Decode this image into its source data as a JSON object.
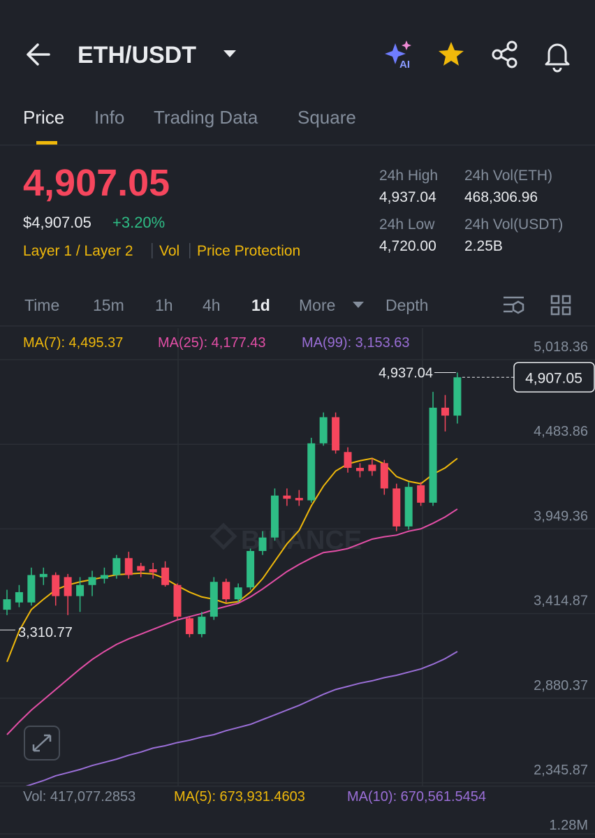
{
  "header": {
    "title": "ETH/USDT",
    "ai_label": "AI"
  },
  "tabs": [
    "Price",
    "Info",
    "Trading Data",
    "Square"
  ],
  "ticker": {
    "price": "4,907.05",
    "usd_price": "$4,907.05",
    "change": "+3.20%",
    "tags": [
      "Layer 1 / Layer 2",
      "Vol",
      "Price Protection"
    ],
    "stats": [
      {
        "label": "24h High",
        "value": "4,937.04"
      },
      {
        "label": "24h Vol(ETH)",
        "value": "468,306.96"
      },
      {
        "label": "24h Low",
        "value": "4,720.00"
      },
      {
        "label": "24h Vol(USDT)",
        "value": "2.25B"
      }
    ]
  },
  "timeframes": [
    "Time",
    "15m",
    "1h",
    "4h",
    "1d",
    "More",
    "Depth"
  ],
  "chart_data": {
    "type": "candlestick",
    "watermark": "BINANCE",
    "categories": [
      null,
      null,
      null,
      null,
      null,
      null,
      null,
      null,
      null,
      null,
      null,
      null,
      null,
      null,
      null,
      null,
      null,
      null,
      null,
      null,
      null,
      null,
      null,
      null,
      null,
      null,
      null,
      null,
      null,
      null,
      null,
      null,
      null,
      null,
      null,
      null,
      null,
      null
    ],
    "open": [
      3439,
      3485,
      3485,
      3645,
      3658,
      3645,
      3525,
      3595,
      3635,
      3658,
      3765,
      3715,
      3695,
      3705,
      3595,
      3385,
      3285,
      3395,
      3615,
      3505,
      3580,
      3810,
      3895,
      4160,
      4145,
      4130,
      4490,
      4655,
      4435,
      4335,
      4355,
      4365,
      4205,
      3965,
      4225,
      4115,
      4715,
      4665
    ],
    "high": [
      3565,
      3595,
      3705,
      3705,
      3675,
      3665,
      3645,
      3685,
      3705,
      3785,
      3805,
      3735,
      3735,
      3745,
      3605,
      3395,
      3425,
      3645,
      3635,
      3605,
      3825,
      3935,
      4205,
      4205,
      4195,
      4525,
      4685,
      4685,
      4465,
      4365,
      4395,
      4385,
      4235,
      4245,
      4245,
      4815,
      4795,
      4937.04
    ],
    "low": [
      3405,
      3455,
      3465,
      3595,
      3465,
      3405,
      3425,
      3525,
      3605,
      3635,
      3635,
      3645,
      3635,
      3585,
      3375,
      3265,
      3265,
      3375,
      3485,
      3485,
      3565,
      3785,
      3875,
      4095,
      4095,
      4115,
      4475,
      4425,
      4305,
      4275,
      4285,
      4165,
      3935,
      3945,
      4095,
      4095,
      4565,
      4615
    ],
    "close": [
      3505,
      3550,
      3658,
      3665,
      3525,
      3525,
      3595,
      3645,
      3658,
      3765,
      3658,
      3685,
      3675,
      3595,
      3395,
      3285,
      3395,
      3615,
      3505,
      3580,
      3810,
      3895,
      4160,
      4140,
      4130,
      4490,
      4655,
      4445,
      4335,
      4315,
      4315,
      4205,
      3965,
      4215,
      4115,
      4715,
      4665,
      4907.05
    ],
    "up_color": "#2ebd85",
    "down_color": "#f6465d",
    "series": [
      {
        "name": "MA(7): 4,495.37",
        "color": "#f0b90b",
        "values": [
          3110,
          3305,
          3440,
          3505,
          3565,
          3595,
          3615,
          3630,
          3645,
          3660,
          3665,
          3670,
          3665,
          3635,
          3590,
          3550,
          3520,
          3505,
          3480,
          3490,
          3550,
          3635,
          3745,
          3855,
          3940,
          4095,
          4220,
          4315,
          4360,
          4380,
          4395,
          4360,
          4280,
          4250,
          4235,
          4295,
          4335,
          4395
        ]
      },
      {
        "name": "MA(25): 4,177.43",
        "color": "#e44fa7",
        "values": [
          2650,
          2730,
          2805,
          2870,
          2935,
          3000,
          3065,
          3125,
          3175,
          3220,
          3255,
          3285,
          3315,
          3345,
          3375,
          3395,
          3415,
          3440,
          3460,
          3480,
          3520,
          3570,
          3625,
          3680,
          3725,
          3765,
          3800,
          3810,
          3825,
          3855,
          3885,
          3900,
          3910,
          3935,
          3950,
          3985,
          4025,
          4075
        ]
      },
      {
        "name": "MA(99): 3,153.63",
        "color": "#9b6fd8",
        "values": [
          2280,
          2310,
          2335,
          2360,
          2390,
          2410,
          2430,
          2455,
          2475,
          2495,
          2520,
          2540,
          2565,
          2580,
          2600,
          2615,
          2635,
          2650,
          2675,
          2695,
          2715,
          2745,
          2775,
          2805,
          2835,
          2870,
          2905,
          2935,
          2955,
          2975,
          2990,
          3010,
          3025,
          3045,
          3065,
          3095,
          3130,
          3175
        ]
      }
    ],
    "ylim": [
      2328,
      5217
    ],
    "yticks": [
      {
        "value": 5018.36,
        "label": "5,018.36"
      },
      {
        "value": 4483.86,
        "label": "4,483.86"
      },
      {
        "value": 3949.36,
        "label": "3,949.36"
      },
      {
        "value": 3414.87,
        "label": "3,414.87"
      },
      {
        "value": 2880.37,
        "label": "2,880.37"
      },
      {
        "value": 2345.87,
        "label": "2,345.87"
      }
    ],
    "high_marker": {
      "value": 4937.04,
      "label": "4,937.04"
    },
    "low_marker": {
      "value": 3310.77,
      "label": "3,310.77"
    },
    "last_price": {
      "value": 4907.05,
      "label": "4,907.05"
    },
    "volume": {
      "labels": [
        {
          "text": "Vol: 417,077.2853",
          "color": "#848e9c"
        },
        {
          "text": "MA(5): 673,931.4603",
          "color": "#f0b90b"
        },
        {
          "text": "MA(10): 670,561.5454",
          "color": "#9b6fd8"
        }
      ],
      "yticks": [
        {
          "value": 1280000,
          "label": "1.28M"
        }
      ]
    }
  }
}
